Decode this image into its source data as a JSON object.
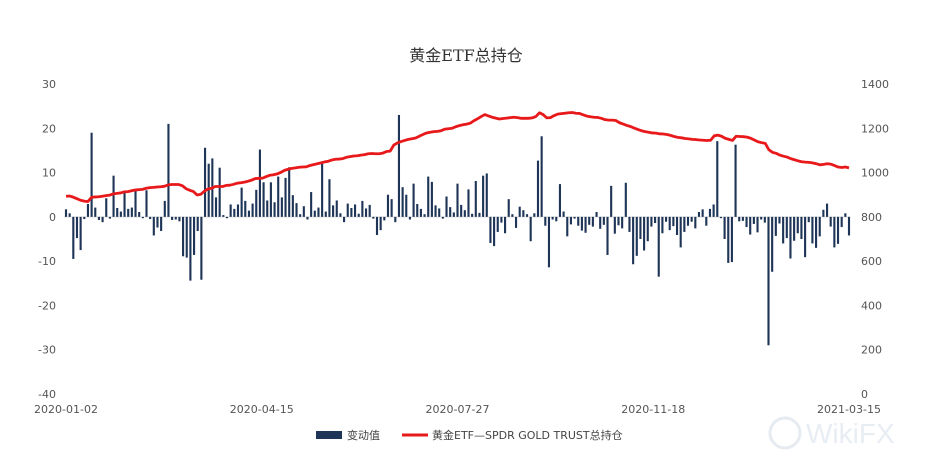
{
  "chart_data": {
    "type": "bar+line",
    "title": "黄金ETF总持仓",
    "x_tick_labels": [
      "2020-01-02",
      "2020-04-15",
      "2020-07-27",
      "2020-11-18",
      "2021-03-15"
    ],
    "y_left": {
      "ylim": [
        -40,
        30
      ],
      "ticks": [
        30,
        20,
        10,
        0,
        -10,
        -20,
        -30,
        -40
      ]
    },
    "y_right": {
      "ylim": [
        0,
        1400
      ],
      "ticks": [
        1400,
        1200,
        1000,
        800,
        600,
        400,
        200,
        0
      ]
    },
    "series": [
      {
        "name": "变动值",
        "type": "bar",
        "axis": "left",
        "color": "#1f3557",
        "values": [
          1.7,
          0.8,
          -9.5,
          -4.8,
          -7.5,
          -0.5,
          2.9,
          19.0,
          2.1,
          -0.7,
          -1.2,
          4.2,
          -0.4,
          9.3,
          2.0,
          1.2,
          5.6,
          1.8,
          2.1,
          5.9,
          1.1,
          -0.3,
          6.0,
          -0.5,
          -4.2,
          -2.4,
          -3.2,
          3.6,
          21.0,
          -0.7,
          -0.6,
          -1.0,
          -8.9,
          -9.2,
          -14.4,
          -8.6,
          -3.2,
          -14.2,
          15.6,
          12.0,
          13.2,
          4.4,
          11.1,
          0.4,
          -0.3,
          2.8,
          1.8,
          2.8,
          6.6,
          3.6,
          1.4,
          3.0,
          6.1,
          15.2,
          7.8,
          3.7,
          7.8,
          3.3,
          9.1,
          4.4,
          8.8,
          11.2,
          4.9,
          3.1,
          0.6,
          2.4,
          -0.6,
          5.6,
          1.4,
          2.1,
          12.5,
          1.2,
          8.5,
          2.6,
          3.7,
          0.8,
          -1.2,
          3.0,
          2.0,
          2.8,
          0.7,
          3.6,
          1.9,
          2.7,
          -0.4,
          -4.1,
          -3.0,
          -0.8,
          5.0,
          4.0,
          -1.2,
          23.0,
          6.7,
          5.0,
          -0.6,
          7.5,
          2.9,
          1.8,
          0.6,
          9.1,
          7.9,
          2.6,
          1.9,
          -0.4,
          4.6,
          2.2,
          1.0,
          7.5,
          2.7,
          1.5,
          6.2,
          0.7,
          8.1,
          0.9,
          9.3,
          9.8,
          -5.9,
          -6.6,
          -3.4,
          -1.3,
          -3.7,
          4.0,
          0.6,
          -2.5,
          2.3,
          1.5,
          0.6,
          -5.5,
          0.8,
          12.7,
          18.2,
          -2.0,
          -11.4,
          -0.6,
          -1.0,
          7.4,
          1.2,
          -4.4,
          -1.7,
          -0.4,
          -2.0,
          -3.1,
          -3.6,
          -1.8,
          -2.2,
          1.1,
          -2.7,
          -1.8,
          -8.6,
          7.0,
          -3.8,
          -1.9,
          -2.6,
          7.7,
          -3.4,
          -10.7,
          -8.8,
          -5.0,
          -7.6,
          -5.5,
          -2.2,
          -1.4,
          -13.5,
          -3.7,
          -1.1,
          -3.0,
          -2.1,
          -4.1,
          -6.9,
          -3.4,
          -2.0,
          -1.1,
          -2.6,
          1.1,
          1.7,
          -2.0,
          1.8,
          2.8,
          17.1,
          -0.3,
          -5.0,
          -10.4,
          -10.2,
          16.3,
          -1.0,
          -0.9,
          -2.3,
          -4.0,
          -1.6,
          -3.5,
          -0.6,
          -1.3,
          -29.0,
          -12.4,
          -4.3,
          -1.5,
          -6.0,
          -4.8,
          -9.4,
          -5.4,
          -3.7,
          -5.0,
          -9.1,
          -1.2,
          -6.0,
          -7.0,
          -4.4,
          1.6,
          3.0,
          -2.2,
          -6.9,
          -6.1,
          -2.3,
          0.8,
          -4.2
        ]
      },
      {
        "name": "黄金ETF—SPDR GOLD TRUST总持仓",
        "type": "line",
        "axis": "right",
        "color": "#e8191b",
        "values": [
          893,
          894,
          889,
          882,
          875,
          871,
          869,
          888,
          890,
          891,
          893,
          896,
          898,
          904,
          906,
          908,
          913,
          914,
          918,
          921,
          923,
          924,
          929,
          932,
          933,
          935,
          936,
          938,
          944,
          946,
          946,
          946,
          940,
          927,
          920,
          914,
          899,
          902,
          916,
          926,
          929,
          937,
          937,
          937,
          942,
          943,
          947,
          952,
          954,
          957,
          961,
          966,
          973,
          974,
          975,
          982,
          988,
          990,
          994,
          1001,
          1010,
          1015,
          1019,
          1021,
          1024,
          1025,
          1026,
          1032,
          1036,
          1040,
          1044,
          1048,
          1051,
          1057,
          1060,
          1061,
          1063,
          1069,
          1072,
          1075,
          1076,
          1079,
          1081,
          1085,
          1086,
          1085,
          1085,
          1088,
          1095,
          1097,
          1124,
          1134,
          1140,
          1145,
          1150,
          1153,
          1156,
          1164,
          1172,
          1179,
          1182,
          1185,
          1186,
          1189,
          1196,
          1198,
          1200,
          1207,
          1212,
          1216,
          1219,
          1223,
          1234,
          1243,
          1253,
          1262,
          1256,
          1250,
          1246,
          1242,
          1244,
          1246,
          1248,
          1250,
          1248,
          1245,
          1245,
          1245,
          1247,
          1253,
          1270,
          1262,
          1247,
          1248,
          1257,
          1264,
          1266,
          1268,
          1270,
          1271,
          1268,
          1267,
          1261,
          1255,
          1252,
          1250,
          1249,
          1245,
          1239,
          1237,
          1237,
          1235,
          1225,
          1219,
          1213,
          1208,
          1201,
          1195,
          1189,
          1185,
          1182,
          1179,
          1178,
          1175,
          1174,
          1172,
          1168,
          1163,
          1159,
          1157,
          1154,
          1152,
          1150,
          1149,
          1147,
          1146,
          1145,
          1146,
          1166,
          1169,
          1164,
          1155,
          1150,
          1145,
          1164,
          1163,
          1162,
          1160,
          1155,
          1147,
          1139,
          1135,
          1132,
          1103,
          1091,
          1087,
          1079,
          1074,
          1070,
          1063,
          1058,
          1053,
          1049,
          1047,
          1046,
          1044,
          1040,
          1035,
          1037,
          1040,
          1038,
          1032,
          1025,
          1023,
          1025,
          1021
        ]
      }
    ],
    "legend": {
      "position": "bottom",
      "entries": [
        "变动值",
        "黄金ETF—SPDR GOLD TRUST总持仓"
      ]
    },
    "grid": false
  },
  "watermark": "WikiFX"
}
